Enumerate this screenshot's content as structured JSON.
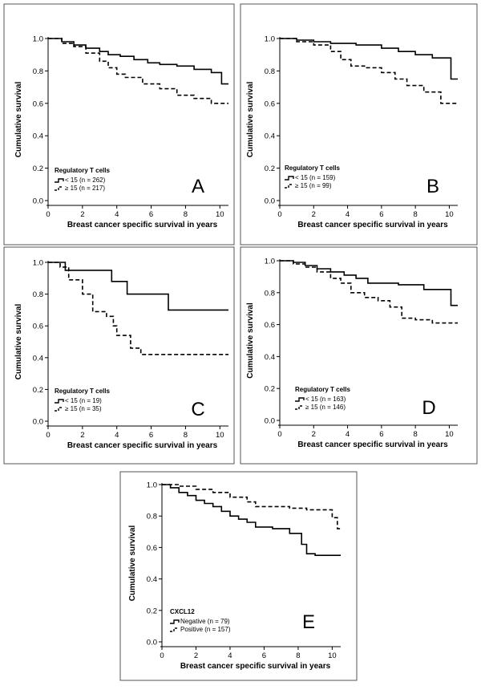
{
  "chart_data": [
    {
      "type": "line",
      "panel_letter": "A",
      "xlabel": "Breast cancer specific survival in years",
      "ylabel": "Cumulative survival",
      "xlim": [
        0,
        10.5
      ],
      "ylim": [
        0,
        1.0
      ],
      "x_ticks": [
        "0",
        "2",
        "4",
        "6",
        "8",
        "10"
      ],
      "y_ticks": [
        "0.0",
        "0.2",
        "0.4",
        "0.6",
        "0.8",
        "1.0"
      ],
      "legend_title": "Regulatory T cells",
      "series": [
        {
          "name": "< 15 (n = 262)",
          "style": "solid",
          "x": [
            0,
            0.8,
            1.5,
            2.2,
            3.0,
            3.5,
            4.2,
            5.0,
            5.8,
            6.5,
            7.5,
            8.5,
            9.5,
            10.0,
            10.1,
            10.5
          ],
          "y": [
            1.0,
            0.98,
            0.96,
            0.94,
            0.92,
            0.9,
            0.89,
            0.87,
            0.85,
            0.84,
            0.83,
            0.81,
            0.79,
            0.79,
            0.72,
            0.72
          ]
        },
        {
          "name": "≥ 15 (n = 217)",
          "style": "dashed",
          "x": [
            0,
            0.8,
            1.5,
            2.2,
            3.0,
            3.5,
            4.0,
            4.5,
            5.5,
            6.5,
            7.5,
            8.5,
            9.5,
            10.5
          ],
          "y": [
            1.0,
            0.97,
            0.95,
            0.91,
            0.86,
            0.82,
            0.78,
            0.76,
            0.72,
            0.69,
            0.65,
            0.63,
            0.6,
            0.6
          ]
        }
      ]
    },
    {
      "type": "line",
      "panel_letter": "B",
      "xlabel": "Breast cancer specific survival in years",
      "ylabel": "Cumulative survival",
      "xlim": [
        0,
        10.5
      ],
      "ylim": [
        0,
        1.0
      ],
      "x_ticks": [
        "0",
        "2",
        "4",
        "6",
        "8",
        "10"
      ],
      "y_ticks": [
        "0.0",
        "0.2",
        "0.4",
        "0.6",
        "0.8",
        "1.0"
      ],
      "legend_title": "Regulatory T cells",
      "series": [
        {
          "name": "< 15 (n = 159)",
          "style": "solid",
          "x": [
            0,
            1.0,
            2.0,
            3.0,
            4.5,
            6.0,
            7.0,
            8.0,
            9.0,
            10.0,
            10.1,
            10.5
          ],
          "y": [
            1.0,
            0.99,
            0.98,
            0.97,
            0.96,
            0.94,
            0.92,
            0.9,
            0.88,
            0.88,
            0.75,
            0.75
          ]
        },
        {
          "name": "≥ 15 (n = 99)",
          "style": "dashed",
          "x": [
            0,
            1.0,
            2.0,
            3.0,
            3.6,
            4.2,
            5.0,
            6.0,
            6.8,
            7.5,
            8.5,
            9.5,
            10.0,
            10.5
          ],
          "y": [
            1.0,
            0.98,
            0.96,
            0.92,
            0.87,
            0.83,
            0.82,
            0.79,
            0.75,
            0.71,
            0.67,
            0.6,
            0.6,
            0.6
          ]
        }
      ]
    },
    {
      "type": "line",
      "panel_letter": "C",
      "xlabel": "Breast cancer specific survival in years",
      "ylabel": "Cumulative survival",
      "xlim": [
        0,
        10.5
      ],
      "ylim": [
        0,
        1.0
      ],
      "x_ticks": [
        "0",
        "2",
        "4",
        "6",
        "8",
        "10"
      ],
      "y_ticks": [
        "0.0",
        "0.2",
        "0.4",
        "0.6",
        "0.8",
        "1.0"
      ],
      "legend_title": "Regulatory T cells",
      "series": [
        {
          "name": "< 15 (n = 19)",
          "style": "solid",
          "x": [
            0,
            1.0,
            3.7,
            4.6,
            7.0,
            10.5
          ],
          "y": [
            1.0,
            0.95,
            0.88,
            0.8,
            0.7,
            0.7
          ]
        },
        {
          "name": "≥ 15 (n = 35)",
          "style": "dashed",
          "x": [
            0,
            0.7,
            1.2,
            2.0,
            2.6,
            3.4,
            3.8,
            4.0,
            4.8,
            5.4,
            10.5
          ],
          "y": [
            1.0,
            0.97,
            0.89,
            0.8,
            0.69,
            0.66,
            0.6,
            0.54,
            0.46,
            0.42,
            0.42
          ]
        }
      ]
    },
    {
      "type": "line",
      "panel_letter": "D",
      "xlabel": "Breast cancer specific survival in years",
      "ylabel": "Cumulative survival",
      "xlim": [
        0,
        10.5
      ],
      "ylim": [
        0,
        1.0
      ],
      "x_ticks": [
        "0",
        "2",
        "4",
        "6",
        "8",
        "10"
      ],
      "y_ticks": [
        "0.0",
        "0.2",
        "0.4",
        "0.6",
        "0.8",
        "1.0"
      ],
      "legend_title": "Regulatory T cells",
      "series": [
        {
          "name": "< 15 (n = 163)",
          "style": "solid",
          "x": [
            0,
            0.8,
            1.5,
            2.2,
            3.0,
            3.8,
            4.5,
            5.2,
            6.0,
            7.0,
            8.5,
            10.0,
            10.1,
            10.5
          ],
          "y": [
            1.0,
            0.99,
            0.97,
            0.95,
            0.93,
            0.91,
            0.89,
            0.86,
            0.86,
            0.85,
            0.82,
            0.82,
            0.72,
            0.72
          ]
        },
        {
          "name": "≥ 15 (n = 146)",
          "style": "dashed",
          "x": [
            0,
            0.8,
            1.5,
            2.2,
            3.0,
            3.6,
            4.2,
            5.0,
            5.8,
            6.5,
            7.2,
            8.0,
            9.0,
            10.5
          ],
          "y": [
            1.0,
            0.98,
            0.96,
            0.93,
            0.89,
            0.86,
            0.8,
            0.77,
            0.75,
            0.71,
            0.64,
            0.63,
            0.61,
            0.61
          ]
        }
      ]
    },
    {
      "type": "line",
      "panel_letter": "E",
      "xlabel": "Breast cancer specific survival in years",
      "ylabel": "Cumulative survival",
      "xlim": [
        0,
        10.5
      ],
      "ylim": [
        0,
        1.0
      ],
      "x_ticks": [
        "0",
        "2",
        "4",
        "6",
        "8",
        "10"
      ],
      "y_ticks": [
        "0.0",
        "0.2",
        "0.4",
        "0.6",
        "0.8",
        "1.0"
      ],
      "legend_title": "CXCL12",
      "series": [
        {
          "name": "Negative (n = 79)",
          "style": "solid",
          "x": [
            0,
            0.5,
            1.0,
            1.5,
            2.0,
            2.5,
            3.0,
            3.5,
            4.0,
            4.5,
            5.0,
            5.5,
            6.5,
            7.5,
            8.2,
            8.5,
            9.0,
            10.5
          ],
          "y": [
            1.0,
            0.98,
            0.95,
            0.93,
            0.9,
            0.88,
            0.86,
            0.83,
            0.8,
            0.78,
            0.76,
            0.73,
            0.72,
            0.69,
            0.62,
            0.56,
            0.55,
            0.55
          ]
        },
        {
          "name": "Positive (n = 157)",
          "style": "dashed",
          "x": [
            0,
            1.0,
            2.0,
            3.0,
            4.0,
            5.0,
            5.5,
            6.5,
            7.5,
            8.5,
            9.5,
            10.0,
            10.3,
            10.5
          ],
          "y": [
            1.0,
            0.99,
            0.97,
            0.95,
            0.92,
            0.89,
            0.86,
            0.86,
            0.85,
            0.84,
            0.84,
            0.79,
            0.72,
            0.72
          ]
        }
      ]
    }
  ]
}
